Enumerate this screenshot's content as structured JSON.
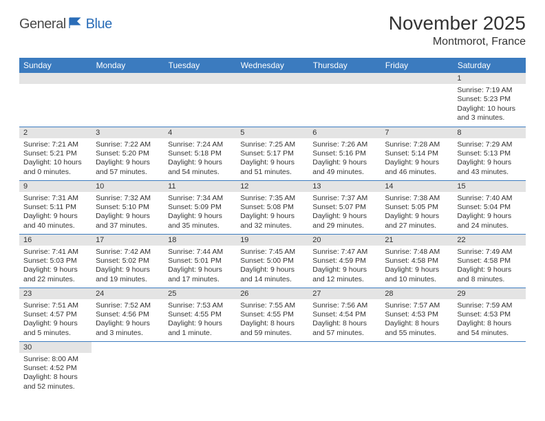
{
  "logo": {
    "general": "General",
    "blue": "Blue"
  },
  "title": "November 2025",
  "location": "Montmorot, France",
  "header_bg": "#3b7bbf",
  "header_fg": "#ffffff",
  "daynum_bg": "#e4e4e4",
  "row_border": "#3b7bbf",
  "weekdays": [
    "Sunday",
    "Monday",
    "Tuesday",
    "Wednesday",
    "Thursday",
    "Friday",
    "Saturday"
  ],
  "first_weekday": 6,
  "days": [
    {
      "n": 1,
      "sr": "7:19 AM",
      "ss": "5:23 PM",
      "dl": "10 hours and 3 minutes."
    },
    {
      "n": 2,
      "sr": "7:21 AM",
      "ss": "5:21 PM",
      "dl": "10 hours and 0 minutes."
    },
    {
      "n": 3,
      "sr": "7:22 AM",
      "ss": "5:20 PM",
      "dl": "9 hours and 57 minutes."
    },
    {
      "n": 4,
      "sr": "7:24 AM",
      "ss": "5:18 PM",
      "dl": "9 hours and 54 minutes."
    },
    {
      "n": 5,
      "sr": "7:25 AM",
      "ss": "5:17 PM",
      "dl": "9 hours and 51 minutes."
    },
    {
      "n": 6,
      "sr": "7:26 AM",
      "ss": "5:16 PM",
      "dl": "9 hours and 49 minutes."
    },
    {
      "n": 7,
      "sr": "7:28 AM",
      "ss": "5:14 PM",
      "dl": "9 hours and 46 minutes."
    },
    {
      "n": 8,
      "sr": "7:29 AM",
      "ss": "5:13 PM",
      "dl": "9 hours and 43 minutes."
    },
    {
      "n": 9,
      "sr": "7:31 AM",
      "ss": "5:11 PM",
      "dl": "9 hours and 40 minutes."
    },
    {
      "n": 10,
      "sr": "7:32 AM",
      "ss": "5:10 PM",
      "dl": "9 hours and 37 minutes."
    },
    {
      "n": 11,
      "sr": "7:34 AM",
      "ss": "5:09 PM",
      "dl": "9 hours and 35 minutes."
    },
    {
      "n": 12,
      "sr": "7:35 AM",
      "ss": "5:08 PM",
      "dl": "9 hours and 32 minutes."
    },
    {
      "n": 13,
      "sr": "7:37 AM",
      "ss": "5:07 PM",
      "dl": "9 hours and 29 minutes."
    },
    {
      "n": 14,
      "sr": "7:38 AM",
      "ss": "5:05 PM",
      "dl": "9 hours and 27 minutes."
    },
    {
      "n": 15,
      "sr": "7:40 AM",
      "ss": "5:04 PM",
      "dl": "9 hours and 24 minutes."
    },
    {
      "n": 16,
      "sr": "7:41 AM",
      "ss": "5:03 PM",
      "dl": "9 hours and 22 minutes."
    },
    {
      "n": 17,
      "sr": "7:42 AM",
      "ss": "5:02 PM",
      "dl": "9 hours and 19 minutes."
    },
    {
      "n": 18,
      "sr": "7:44 AM",
      "ss": "5:01 PM",
      "dl": "9 hours and 17 minutes."
    },
    {
      "n": 19,
      "sr": "7:45 AM",
      "ss": "5:00 PM",
      "dl": "9 hours and 14 minutes."
    },
    {
      "n": 20,
      "sr": "7:47 AM",
      "ss": "4:59 PM",
      "dl": "9 hours and 12 minutes."
    },
    {
      "n": 21,
      "sr": "7:48 AM",
      "ss": "4:58 PM",
      "dl": "9 hours and 10 minutes."
    },
    {
      "n": 22,
      "sr": "7:49 AM",
      "ss": "4:58 PM",
      "dl": "9 hours and 8 minutes."
    },
    {
      "n": 23,
      "sr": "7:51 AM",
      "ss": "4:57 PM",
      "dl": "9 hours and 5 minutes."
    },
    {
      "n": 24,
      "sr": "7:52 AM",
      "ss": "4:56 PM",
      "dl": "9 hours and 3 minutes."
    },
    {
      "n": 25,
      "sr": "7:53 AM",
      "ss": "4:55 PM",
      "dl": "9 hours and 1 minute."
    },
    {
      "n": 26,
      "sr": "7:55 AM",
      "ss": "4:55 PM",
      "dl": "8 hours and 59 minutes."
    },
    {
      "n": 27,
      "sr": "7:56 AM",
      "ss": "4:54 PM",
      "dl": "8 hours and 57 minutes."
    },
    {
      "n": 28,
      "sr": "7:57 AM",
      "ss": "4:53 PM",
      "dl": "8 hours and 55 minutes."
    },
    {
      "n": 29,
      "sr": "7:59 AM",
      "ss": "4:53 PM",
      "dl": "8 hours and 54 minutes."
    },
    {
      "n": 30,
      "sr": "8:00 AM",
      "ss": "4:52 PM",
      "dl": "8 hours and 52 minutes."
    }
  ],
  "labels": {
    "sunrise": "Sunrise:",
    "sunset": "Sunset:",
    "daylight": "Daylight:"
  }
}
